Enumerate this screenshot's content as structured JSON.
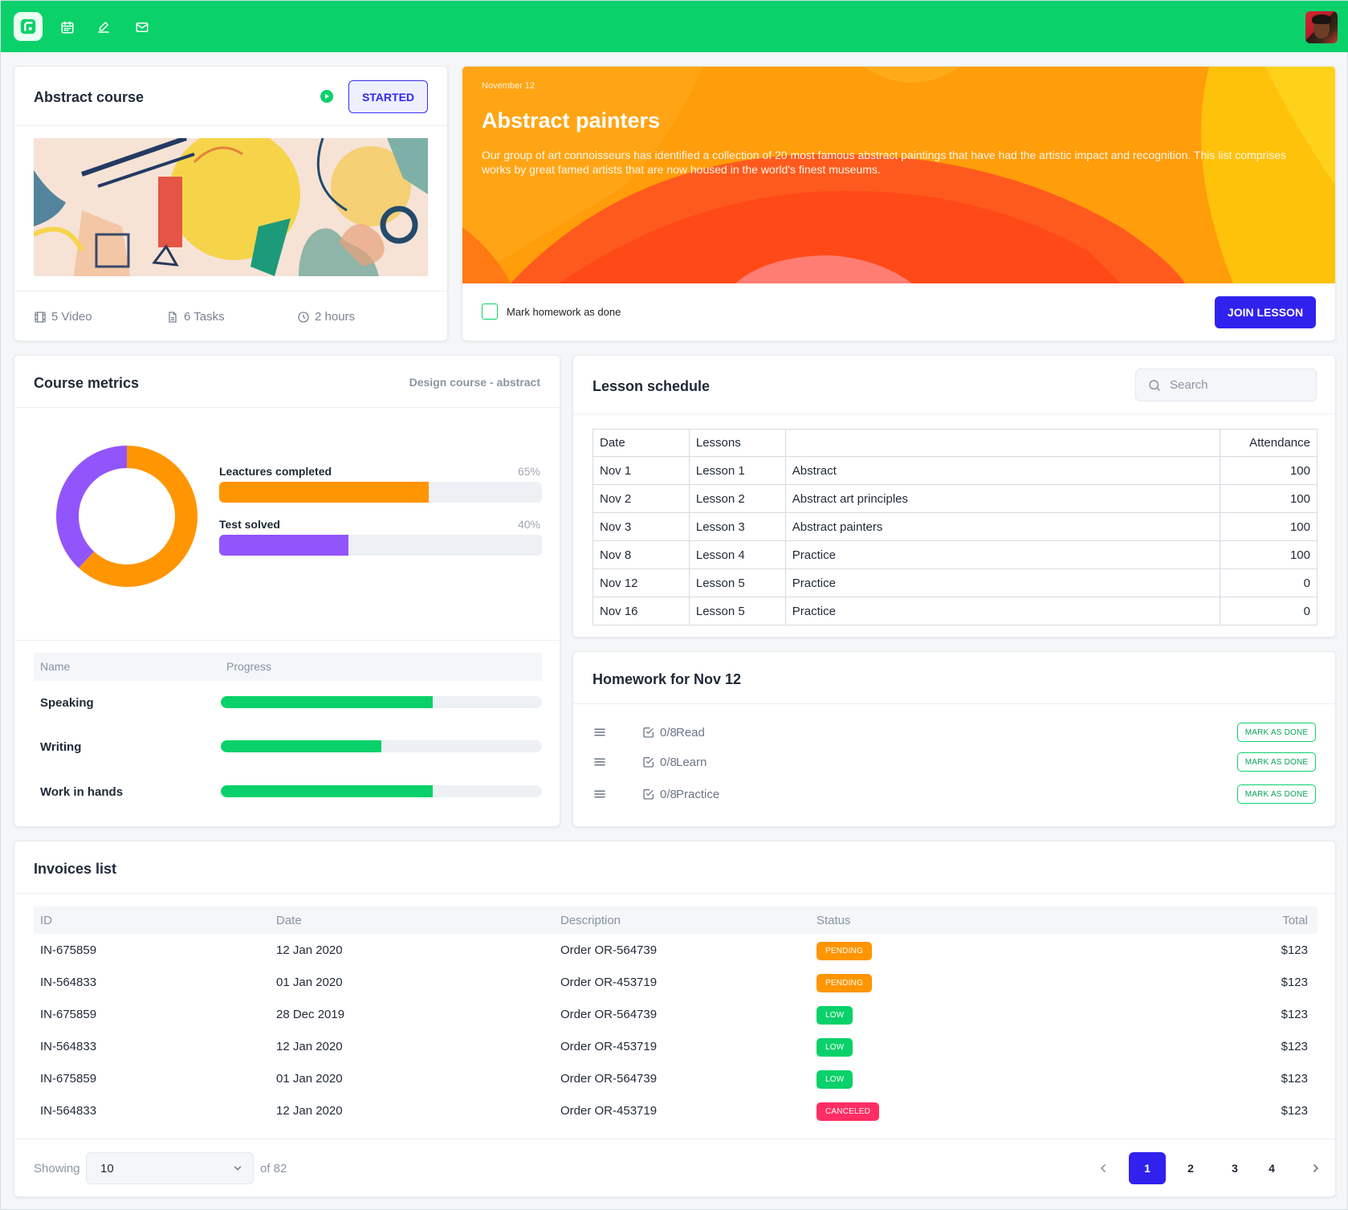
{
  "colors": {
    "brand": "#0ad16a",
    "accent": "#3121ee",
    "orange": "#ff9500",
    "purple": "#9255fb",
    "red": "#ff2d63"
  },
  "topbar": {
    "icons": [
      "logo-icon",
      "calendar-icon",
      "edit-icon",
      "mail-icon"
    ],
    "avatar": "user-avatar"
  },
  "course": {
    "title": "Abstract course",
    "status_label": "STARTED",
    "videos": "5 Video",
    "tasks": "6 Tasks",
    "duration": "2 hours"
  },
  "hero": {
    "date": "November 12",
    "title": "Abstract painters",
    "description": "Our group of art connoisseurs has identified a collection of 20 most famous abstract paintings that have had the artistic impact and recognition. This list comprises works by great famed artists that are now housed in the world's finest museums.",
    "homework_label": "Mark homework as done",
    "join_label": "JOIN LESSON"
  },
  "metrics": {
    "title": "Course metrics",
    "subtitle": "Design course - abstract",
    "donut": [
      {
        "name": "Leactures completed",
        "value": 65,
        "pct_label": "65%",
        "color": "#ff9500"
      },
      {
        "name": "Test solved",
        "value": 40,
        "pct_label": "40%",
        "color": "#9255fb"
      }
    ],
    "table_headers": [
      "Name",
      "Progress"
    ],
    "rows": [
      {
        "name": "Speaking",
        "progress": 0.66
      },
      {
        "name": "Writing",
        "progress": 0.5
      },
      {
        "name": "Work in hands",
        "progress": 0.66
      }
    ]
  },
  "schedule": {
    "title": "Lesson schedule",
    "search_placeholder": "Search",
    "headers": [
      "Date",
      "Lessons",
      "",
      "Attendance"
    ],
    "rows": [
      [
        "Nov 1",
        "Lesson 1",
        "Abstract",
        "100"
      ],
      [
        "Nov 2",
        "Lesson 2",
        "Abstract art principles",
        "100"
      ],
      [
        "Nov 3",
        "Lesson 3",
        "Abstract painters",
        "100"
      ],
      [
        "Nov 8",
        "Lesson 4",
        "Practice",
        "100"
      ],
      [
        "Nov 12",
        "Lesson 5",
        "Practice",
        "0"
      ],
      [
        "Nov 16",
        "Lesson 5",
        "Practice",
        "0"
      ]
    ]
  },
  "homework": {
    "title": "Homework for Nov 12",
    "mark_label": "MARK AS DONE",
    "items": [
      {
        "count": "0/8",
        "name": "Read"
      },
      {
        "count": "0/8",
        "name": "Learn"
      },
      {
        "count": "0/8",
        "name": "Practice"
      }
    ]
  },
  "invoices": {
    "title": "Invoices list",
    "headers": [
      "ID",
      "Date",
      "Description",
      "Status",
      "Total"
    ],
    "rows": [
      {
        "id": "IN-675859",
        "date": "12 Jan 2020",
        "desc": "Order OR-564739",
        "status": "PENDING",
        "color": "#ff9500",
        "total": "$123"
      },
      {
        "id": "IN-564833",
        "date": "01 Jan 2020",
        "desc": "Order OR-453719",
        "status": "PENDING",
        "color": "#ff9500",
        "total": "$123"
      },
      {
        "id": "IN-675859",
        "date": "28 Dec 2019",
        "desc": "Order OR-564739",
        "status": "LOW",
        "color": "#0ad16a",
        "total": "$123"
      },
      {
        "id": "IN-564833",
        "date": "12 Jan 2020",
        "desc": "Order OR-453719",
        "status": "LOW",
        "color": "#0ad16a",
        "total": "$123"
      },
      {
        "id": "IN-675859",
        "date": "01 Jan 2020",
        "desc": "Order OR-564739",
        "status": "LOW",
        "color": "#0ad16a",
        "total": "$123"
      },
      {
        "id": "IN-564833",
        "date": "12 Jan 2020",
        "desc": "Order OR-453719",
        "status": "CANCELED",
        "color": "#ff2d63",
        "total": "$123"
      }
    ],
    "showing_label": "Showing",
    "page_size": "10",
    "of_label": "of 82",
    "pages": [
      "1",
      "2",
      "3",
      "4"
    ],
    "current_page": "1"
  }
}
